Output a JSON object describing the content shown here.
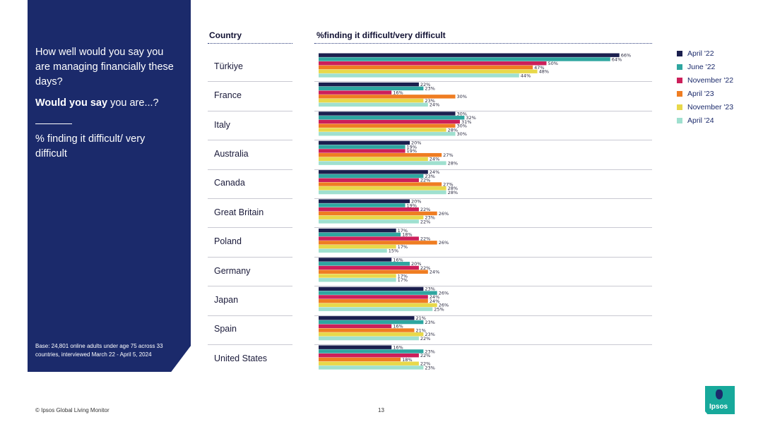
{
  "left_panel": {
    "question": "How well would you say you are managing financially these days?",
    "prompt_bold": "Would you say",
    "prompt_rest": " you are...?",
    "measure": "% finding it difficult/ very difficult",
    "base_note": "Base: 24,801 online adults under age 75 across 33 countries, interviewed March 22 - April 5, 2024"
  },
  "headers": {
    "country": "Country",
    "measure": "%finding it difficult/very difficult"
  },
  "footer": {
    "source": "© Ipsos Global Living Monitor",
    "page_number": "13",
    "logo_text": "Ipsos"
  },
  "colors": {
    "panel_bg": "#1b2a6b",
    "brand_teal": "#17a99b"
  },
  "chart_data": {
    "type": "bar",
    "orientation": "horizontal",
    "title": "%finding it difficult/very difficult",
    "categories": [
      "Türkiye",
      "France",
      "Italy",
      "Australia",
      "Canada",
      "Great Britain",
      "Poland",
      "Germany",
      "Japan",
      "Spain",
      "United States"
    ],
    "series": [
      {
        "name": "April '22",
        "color": "#1b1f4e",
        "values": [
          66,
          22,
          30,
          20,
          24,
          20,
          17,
          16,
          23,
          21,
          16
        ]
      },
      {
        "name": "June '22",
        "color": "#2ea6a0",
        "values": [
          64,
          23,
          32,
          19,
          23,
          19,
          18,
          20,
          26,
          23,
          23
        ]
      },
      {
        "name": "November '22",
        "color": "#cc1f5a",
        "values": [
          50,
          16,
          31,
          19,
          22,
          22,
          22,
          22,
          24,
          16,
          22
        ]
      },
      {
        "name": "April '23",
        "color": "#ef7d22",
        "values": [
          47,
          30,
          30,
          27,
          27,
          26,
          26,
          24,
          24,
          21,
          18
        ]
      },
      {
        "name": "November '23",
        "color": "#e8d84a",
        "values": [
          48,
          23,
          28,
          24,
          28,
          23,
          17,
          17,
          26,
          23,
          22
        ]
      },
      {
        "name": "April '24",
        "color": "#9fe0cf",
        "values": [
          44,
          24,
          30,
          28,
          28,
          22,
          15,
          17,
          25,
          22,
          23
        ]
      }
    ],
    "value_suffix": "%",
    "xlim": [
      0,
      100
    ]
  }
}
